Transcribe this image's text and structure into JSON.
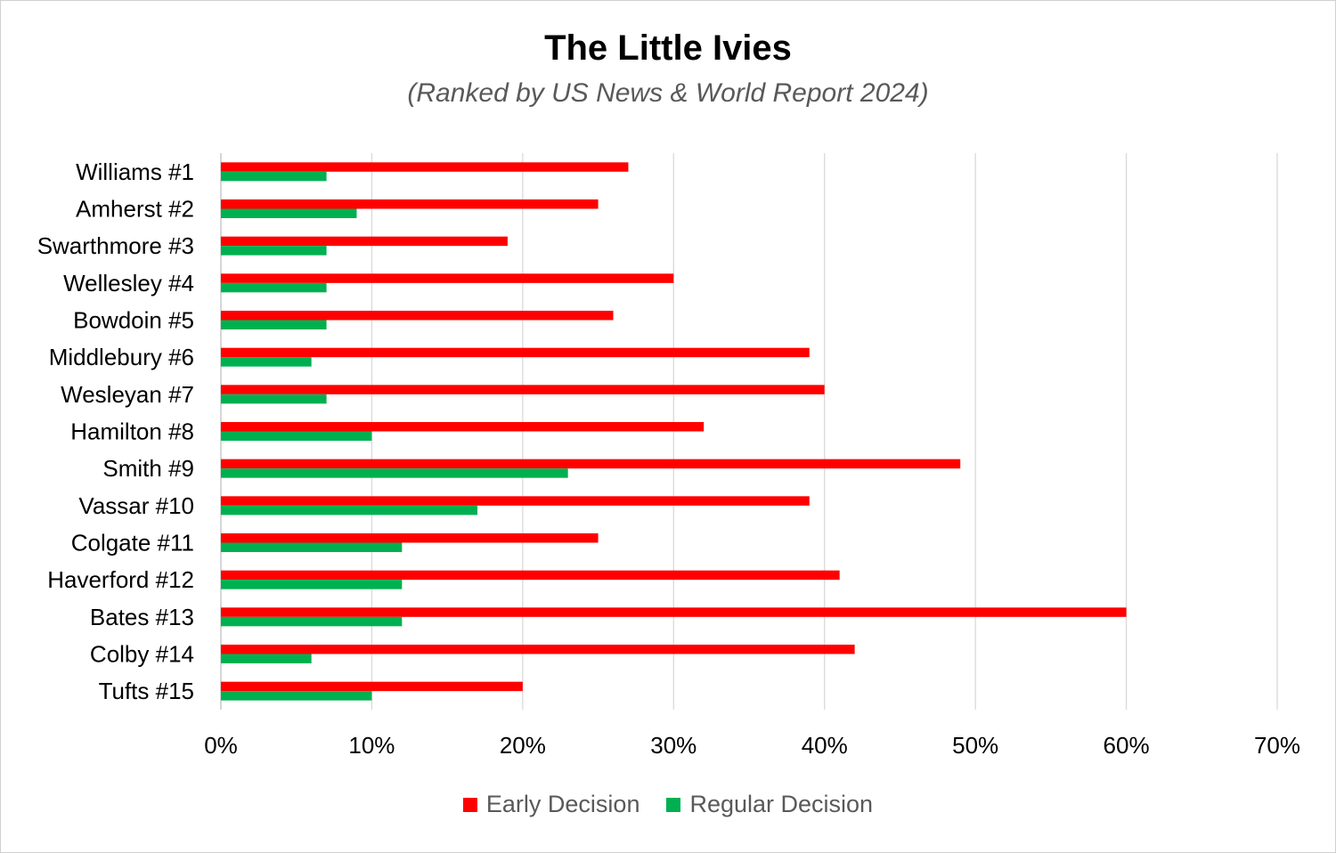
{
  "chart_data": {
    "type": "bar",
    "orientation": "horizontal",
    "title": "The Little Ivies",
    "subtitle": "(Ranked by US News & World Report 2024)",
    "xlabel": "",
    "ylabel": "",
    "xlim": [
      0,
      70
    ],
    "ticks": [
      "0%",
      "10%",
      "20%",
      "30%",
      "40%",
      "50%",
      "60%",
      "70%"
    ],
    "tick_values": [
      0,
      10,
      20,
      30,
      40,
      50,
      60,
      70
    ],
    "grid": true,
    "legend_position": "bottom",
    "categories": [
      "Williams #1",
      "Amherst #2",
      "Swarthmore #3",
      "Wellesley #4",
      "Bowdoin #5",
      "Middlebury #6",
      "Wesleyan #7",
      "Hamilton #8",
      "Smith #9",
      "Vassar #10",
      "Colgate #11",
      "Haverford #12",
      "Bates #13",
      "Colby #14",
      "Tufts #15"
    ],
    "series": [
      {
        "name": "Early Decision",
        "color": "#ff0000",
        "values": [
          27,
          25,
          19,
          30,
          26,
          39,
          40,
          32,
          49,
          39,
          25,
          41,
          60,
          42,
          20
        ]
      },
      {
        "name": "Regular Decision",
        "color": "#00b050",
        "values": [
          7,
          9,
          7,
          7,
          7,
          6,
          7,
          10,
          23,
          17,
          12,
          12,
          12,
          6,
          10
        ]
      }
    ]
  }
}
